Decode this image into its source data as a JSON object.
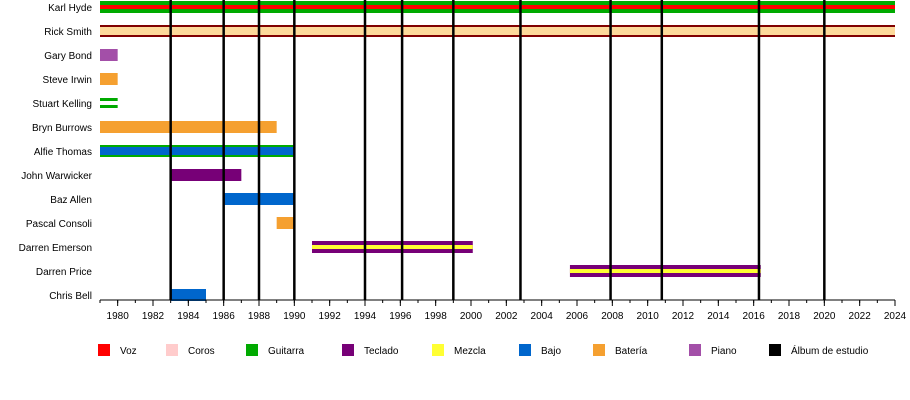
{
  "chart_data": {
    "type": "timeline",
    "x_axis": {
      "min": 1979,
      "max": 2024,
      "tick_labels": [
        "1980",
        "1982",
        "1984",
        "1986",
        "1988",
        "1990",
        "1992",
        "1994",
        "1996",
        "1998",
        "2000",
        "2002",
        "2004",
        "2006",
        "2008",
        "2010",
        "2012",
        "2014",
        "2016",
        "2018",
        "2020",
        "2022",
        "2024"
      ]
    },
    "album_years": [
      1983,
      1986,
      1988,
      1990,
      1994,
      1996.1,
      1999,
      2002.8,
      2007.9,
      2010.8,
      2016.3,
      2020
    ],
    "members": [
      {
        "name": "Karl Hyde",
        "segments": [
          {
            "start": 1979,
            "end": 2024,
            "roles": [
              "voz",
              "guitarra"
            ]
          }
        ]
      },
      {
        "name": "Rick Smith",
        "segments": [
          {
            "start": 1979,
            "end": 2024,
            "roles": [
              "teclado",
              "mezcla"
            ]
          }
        ]
      },
      {
        "name": "Gary Bond",
        "segments": [
          {
            "start": 1979,
            "end": 1980,
            "roles": [
              "piano"
            ]
          }
        ]
      },
      {
        "name": "Steve Irwin",
        "segments": [
          {
            "start": 1979,
            "end": 1980,
            "roles": [
              "bateria"
            ]
          }
        ]
      },
      {
        "name": "Stuart Kelling",
        "segments": [
          {
            "start": 1979,
            "end": 1980,
            "roles": [
              "guitarra"
            ],
            "style": "split"
          }
        ]
      },
      {
        "name": "Bryn Burrows",
        "segments": [
          {
            "start": 1979,
            "end": 1989,
            "roles": [
              "bateria"
            ]
          }
        ]
      },
      {
        "name": "Alfie Thomas",
        "segments": [
          {
            "start": 1979,
            "end": 1990,
            "roles": [
              "bajo",
              "guitarra"
            ]
          }
        ]
      },
      {
        "name": "John Warwicker",
        "segments": [
          {
            "start": 1983,
            "end": 1987,
            "roles": [
              "teclado"
            ]
          }
        ]
      },
      {
        "name": "Baz Allen",
        "segments": [
          {
            "start": 1986,
            "end": 1990,
            "roles": [
              "bajo"
            ]
          }
        ]
      },
      {
        "name": "Pascal Consoli",
        "segments": [
          {
            "start": 1989,
            "end": 1990,
            "roles": [
              "bateria"
            ]
          }
        ]
      },
      {
        "name": "Darren Emerson",
        "segments": [
          {
            "start": 1991,
            "end": 2000.1,
            "roles": [
              "teclado",
              "mezcla"
            ]
          }
        ]
      },
      {
        "name": "Darren Price",
        "segments": [
          {
            "start": 2005.6,
            "end": 2016.4,
            "roles": [
              "teclado",
              "mezcla"
            ]
          }
        ]
      },
      {
        "name": "Chris Bell",
        "segments": [
          {
            "start": 1983,
            "end": 1985,
            "roles": [
              "bajo"
            ]
          }
        ]
      }
    ],
    "legend": [
      {
        "key": "voz",
        "label": "Voz",
        "color": "#ff0000"
      },
      {
        "key": "coros",
        "label": "Coros",
        "color": "#ffcccc"
      },
      {
        "key": "guitarra",
        "label": "Guitarra",
        "color": "#00aa00"
      },
      {
        "key": "teclado",
        "label": "Teclado",
        "color": "#770077"
      },
      {
        "key": "mezcla",
        "label": "Mezcla",
        "color": "#ffff33"
      },
      {
        "key": "bajo",
        "label": "Bajo",
        "color": "#0066cc"
      },
      {
        "key": "bateria",
        "label": "Batería",
        "color": "#f5a030"
      },
      {
        "key": "piano",
        "label": "Piano",
        "color": "#a34fa8"
      },
      {
        "key": "album",
        "label": "Álbum de estudio",
        "color": "#000000"
      }
    ],
    "legend_placement": "bottom"
  },
  "colors": {
    "rick_smith_fill": "#fdd99a",
    "rick_smith_border": "#800000",
    "karl_hyde_stripe": "#00aa00",
    "karl_hyde_core": "#ff0000"
  }
}
